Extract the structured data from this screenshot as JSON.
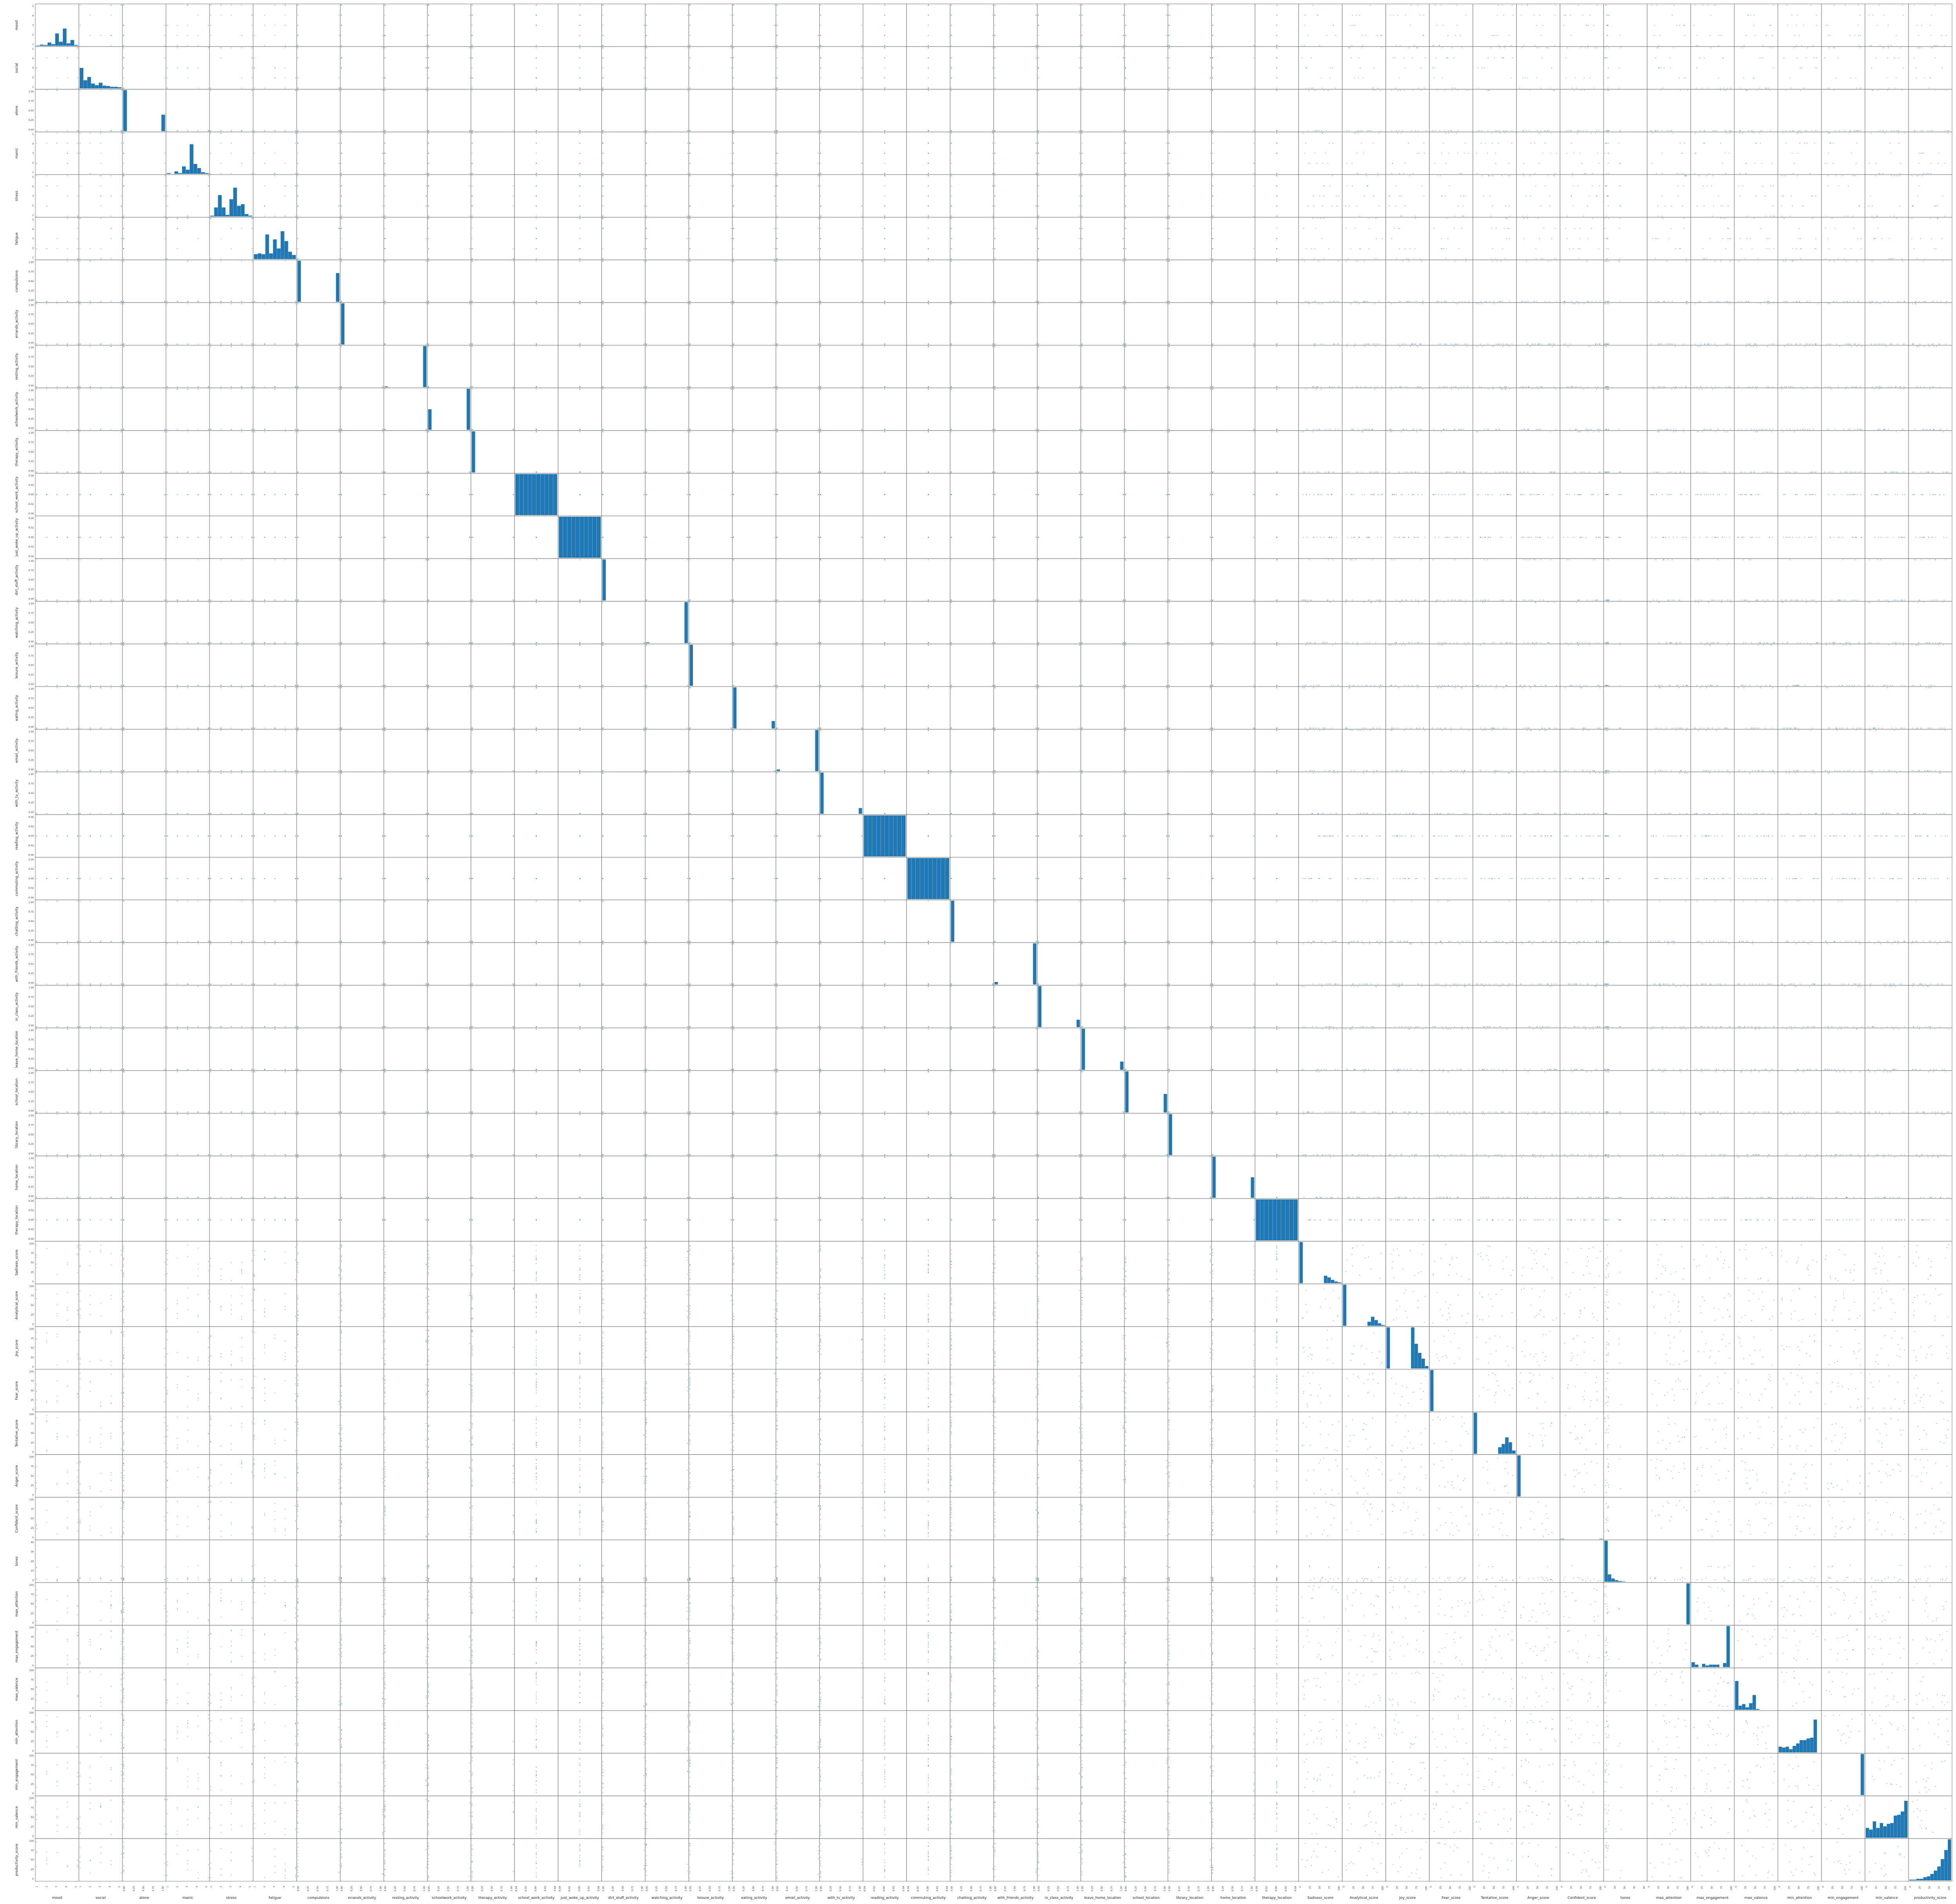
{
  "chart_data": {
    "type": "scatter_matrix",
    "title": "",
    "diagonal": "hist",
    "colors": {
      "marks": "#1f77b4",
      "frame": "#555555",
      "tick": "#333333"
    },
    "variables": [
      "mood",
      "social",
      "alone",
      "manic",
      "stress",
      "fatigue",
      "compulsions",
      "errands_activity",
      "resting_activity",
      "schoolwork_activity",
      "therapy_activity",
      "school_work_activity",
      "just_woke_up_activity",
      "dirt_stuff_activity",
      "watching_activity",
      "leisure_activity",
      "eating_activity",
      "email_activity",
      "with_tv_activity",
      "reading_activity",
      "commuting_activity",
      "chatting_activity",
      "with_friends_activity",
      "in_class_activity",
      "leave_home_location",
      "school_location",
      "library_location",
      "home_location",
      "therapy_location",
      "Sadness_score",
      "Analytical_score",
      "Joy_score",
      "Fear_score",
      "Tentative_score",
      "Anger_score",
      "Confident_score",
      "tones",
      "max_attention",
      "max_engagement",
      "max_valence",
      "min_attention",
      "min_engagement",
      "min_valence",
      "productivity_score"
    ],
    "kinds": [
      "L5",
      "L5",
      "B",
      "L5",
      "L5",
      "L5",
      "B",
      "B",
      "B",
      "B",
      "B",
      "S",
      "S",
      "B",
      "B",
      "B",
      "B",
      "B",
      "B",
      "S",
      "S",
      "B",
      "B",
      "B",
      "B",
      "B",
      "B",
      "B",
      "S",
      "C",
      "C",
      "C",
      "C",
      "C",
      "C",
      "C",
      "T",
      "C",
      "C",
      "C",
      "C",
      "C",
      "C",
      "C"
    ],
    "tick_sets": {
      "L5": [
        "1",
        "2",
        "3",
        "4",
        "5"
      ],
      "B": [
        "0.00",
        "0.25",
        "0.50",
        "0.75",
        "1.00"
      ],
      "S": [
        "-0.04",
        "-0.02",
        "0.00",
        "0.02",
        "0.04"
      ],
      "C": [
        "0",
        "25",
        "50",
        "75",
        "100"
      ],
      "T": [
        "0",
        "10",
        "20",
        "30",
        "40"
      ]
    },
    "histograms": [
      [
        1,
        3,
        2,
        8,
        4,
        30,
        10,
        42,
        6,
        14,
        2
      ],
      [
        50,
        20,
        28,
        12,
        8,
        14,
        7,
        6,
        4,
        4,
        3
      ],
      [
        100,
        0,
        0,
        0,
        0,
        0,
        0,
        0,
        0,
        0,
        40
      ],
      [
        2,
        0,
        6,
        2,
        18,
        10,
        72,
        24,
        14,
        4,
        2
      ],
      [
        2,
        22,
        52,
        22,
        4,
        42,
        70,
        26,
        30,
        6,
        2
      ],
      [
        12,
        14,
        12,
        60,
        14,
        48,
        26,
        68,
        44,
        18,
        10
      ],
      [
        100,
        0,
        0,
        0,
        0,
        0,
        0,
        0,
        0,
        0,
        0,
        70
      ],
      [
        100,
        0,
        0,
        0,
        0,
        0,
        0,
        0,
        0,
        0,
        0,
        0
      ],
      [
        2,
        0,
        0,
        0,
        0,
        0,
        0,
        0,
        0,
        0,
        0,
        100
      ],
      [
        50,
        0,
        0,
        0,
        0,
        0,
        0,
        0,
        0,
        0,
        0,
        100
      ],
      [
        100,
        0,
        0,
        0,
        0,
        0,
        0,
        0,
        0,
        0,
        0,
        0
      ],
      [
        100,
        100,
        100,
        100,
        100,
        100,
        100,
        100,
        100,
        100
      ],
      [
        100,
        100,
        100,
        100,
        100,
        100,
        100,
        100,
        100,
        100
      ],
      [
        100,
        0,
        0,
        0,
        0,
        0,
        0,
        0,
        0,
        0,
        0,
        0
      ],
      [
        2,
        0,
        0,
        0,
        0,
        0,
        0,
        0,
        0,
        0,
        0,
        100
      ],
      [
        100,
        0,
        0,
        0,
        0,
        0,
        0,
        0,
        0,
        0,
        0,
        0
      ],
      [
        100,
        0,
        0,
        0,
        0,
        0,
        0,
        0,
        0,
        0,
        0,
        18
      ],
      [
        4,
        0,
        0,
        0,
        0,
        0,
        0,
        0,
        0,
        0,
        0,
        100
      ],
      [
        100,
        0,
        0,
        0,
        0,
        0,
        0,
        0,
        0,
        0,
        0,
        14
      ],
      [
        100,
        100,
        100,
        100,
        100,
        100,
        100,
        100,
        100,
        100
      ],
      [
        100,
        100,
        100,
        100,
        100,
        100,
        100,
        100,
        100,
        100
      ],
      [
        100,
        0,
        0,
        0,
        0,
        0,
        0,
        0,
        0,
        0,
        0,
        0
      ],
      [
        6,
        0,
        0,
        0,
        0,
        0,
        0,
        0,
        0,
        0,
        0,
        100
      ],
      [
        100,
        0,
        0,
        0,
        0,
        0,
        0,
        0,
        0,
        0,
        0,
        18
      ],
      [
        100,
        0,
        0,
        0,
        0,
        0,
        0,
        0,
        0,
        0,
        0,
        20
      ],
      [
        100,
        0,
        0,
        0,
        0,
        0,
        0,
        0,
        0,
        0,
        0,
        45
      ],
      [
        100,
        0,
        0,
        0,
        0,
        0,
        0,
        0,
        0,
        0,
        0,
        0
      ],
      [
        100,
        0,
        0,
        0,
        0,
        0,
        0,
        0,
        0,
        0,
        0,
        50
      ],
      [
        100,
        100,
        100,
        100,
        100,
        100,
        100,
        100,
        100,
        100
      ],
      [
        100,
        0,
        0,
        0,
        0,
        0,
        0,
        18,
        14,
        8,
        4,
        2
      ],
      [
        100,
        0,
        0,
        0,
        0,
        0,
        0,
        10,
        22,
        14,
        6,
        2
      ],
      [
        100,
        0,
        0,
        0,
        0,
        0,
        0,
        100,
        60,
        38,
        24,
        6
      ],
      [
        100,
        0,
        0,
        0,
        0,
        0,
        0,
        0,
        0,
        0,
        0,
        0
      ],
      [
        100,
        0,
        0,
        0,
        0,
        0,
        0,
        16,
        24,
        40,
        28,
        8
      ],
      [
        100,
        0,
        0,
        0,
        0,
        0,
        0,
        0,
        0,
        0,
        0,
        0
      ],
      [
        1,
        0,
        0,
        0,
        0,
        0,
        0,
        0,
        0,
        0,
        0,
        1
      ],
      [
        100,
        18,
        8,
        4,
        2,
        1,
        0,
        0,
        0,
        0,
        0,
        0
      ],
      [
        0,
        0,
        0,
        0,
        0,
        0,
        0,
        0,
        0,
        0,
        0,
        100
      ],
      [
        12,
        6,
        0,
        8,
        4,
        6,
        6,
        6,
        0,
        10,
        100,
        0
      ],
      [
        70,
        10,
        14,
        6,
        16,
        36,
        2,
        0,
        0,
        0,
        0,
        0
      ],
      [
        14,
        12,
        14,
        8,
        16,
        22,
        30,
        30,
        34,
        36,
        80,
        0
      ],
      [
        0,
        0,
        0,
        0,
        0,
        0,
        0,
        0,
        0,
        0,
        0,
        100
      ],
      [
        24,
        20,
        40,
        24,
        36,
        28,
        34,
        36,
        54,
        56,
        64,
        90
      ],
      [
        2,
        2,
        4,
        4,
        8,
        10,
        16,
        24,
        34,
        52,
        74,
        100
      ]
    ],
    "notes": "44-variable pandas scatter_matrix; off-diagonal cells are pairwise scatter plots, diagonal cells are histograms."
  }
}
